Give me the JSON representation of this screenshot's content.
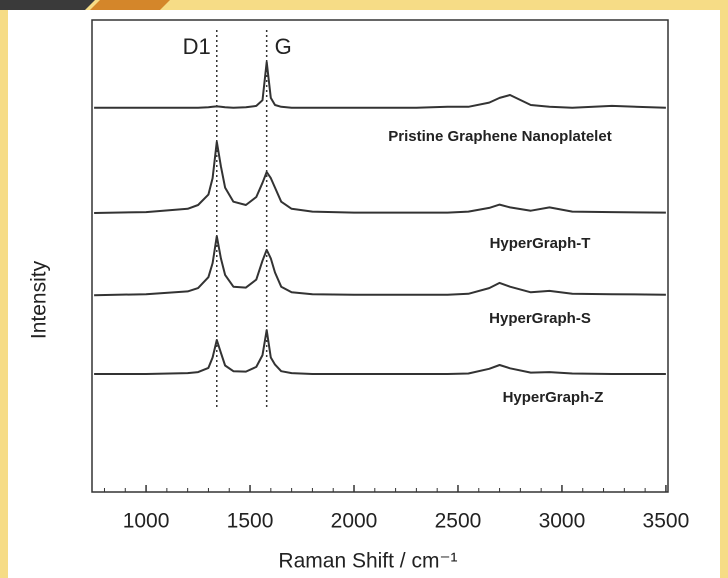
{
  "chart_data": {
    "type": "line",
    "x_label": "Raman Shift / cm⁻¹",
    "y_label": "Intensity",
    "xlim": [
      740,
      3510
    ],
    "ylim": [
      0,
      100
    ],
    "xticks": [
      1000,
      1500,
      2000,
      2500,
      3000,
      3500
    ],
    "xminorticks": [
      800,
      900,
      1100,
      1200,
      1300,
      1400,
      1600,
      1700,
      1800,
      1900,
      2100,
      2200,
      2300,
      2400,
      2600,
      2700,
      2800,
      2900,
      3100,
      3200,
      3300,
      3400
    ],
    "annotations": [
      {
        "text": "D1",
        "x": 1340
      },
      {
        "text": "G",
        "x": 1580
      }
    ],
    "x": [
      750,
      1000,
      1200,
      1250,
      1300,
      1320,
      1340,
      1360,
      1380,
      1420,
      1480,
      1530,
      1560,
      1580,
      1600,
      1620,
      1650,
      1700,
      1800,
      2000,
      2300,
      2450,
      2550,
      2650,
      2700,
      2750,
      2850,
      2940,
      3050,
      3240,
      3500
    ],
    "series": [
      {
        "name": "Pristine Graphene Nanoplatelet",
        "color": "#333333",
        "values": [
          81.4,
          81.4,
          81.4,
          81.4,
          81.5,
          81.6,
          81.7,
          81.6,
          81.5,
          81.4,
          81.5,
          81.8,
          83,
          91.1,
          83.5,
          82,
          81.6,
          81.4,
          81.4,
          81.4,
          81.4,
          81.6,
          81.6,
          82.5,
          83.5,
          84.1,
          82,
          81.6,
          81.4,
          81.8,
          81.4
        ]
      },
      {
        "name": "HyperGraph-T",
        "color": "#333333",
        "values": [
          59.1,
          59.3,
          60,
          60.8,
          63,
          66.5,
          74.2,
          69,
          64.5,
          61.5,
          60.8,
          62.5,
          65.5,
          67.8,
          66.5,
          64.5,
          61.5,
          60,
          59.4,
          59.2,
          59.2,
          59.2,
          59.4,
          60.2,
          60.9,
          60.3,
          59.6,
          60.3,
          59.4,
          59.3,
          59.2
        ]
      },
      {
        "name": "HyperGraph-S",
        "color": "#333333",
        "values": [
          41.7,
          41.9,
          42.5,
          43.2,
          45.5,
          48.5,
          54.2,
          49.5,
          46,
          43.5,
          43.3,
          45,
          49,
          51.3,
          49.5,
          46.5,
          43.5,
          42.3,
          41.9,
          41.8,
          41.8,
          41.8,
          42,
          43.2,
          44.3,
          43.5,
          42.3,
          42.6,
          42,
          41.9,
          41.8
        ]
      },
      {
        "name": "HyperGraph-Z",
        "color": "#333333",
        "values": [
          25,
          25,
          25.2,
          25.4,
          26.3,
          28.5,
          32.2,
          29.5,
          26.8,
          25.6,
          25.5,
          26.5,
          29,
          34.3,
          28.5,
          27,
          25.6,
          25.2,
          25,
          25,
          25,
          25,
          25.1,
          26.1,
          26.9,
          26.2,
          25.3,
          25.4,
          25.1,
          25,
          25
        ]
      }
    ]
  }
}
